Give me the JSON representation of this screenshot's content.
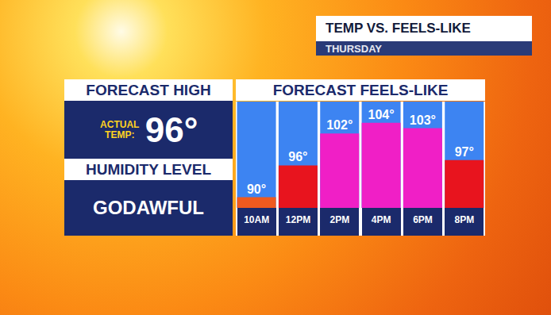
{
  "header": {
    "title": "TEMP VS. FEELS-LIKE",
    "subtitle": "THURSDAY"
  },
  "panel": {
    "forecast_title": "FORECAST HIGH",
    "actual_temp_label": "ACTUAL TEMP:",
    "actual_temp": "96°",
    "humidity_title": "HUMIDITY LEVEL",
    "humidity_level": "GODAWFUL"
  },
  "chart_data": {
    "type": "bar",
    "title": "FORECAST FEELS-LIKE",
    "categories": [
      "10AM",
      "12PM",
      "2PM",
      "4PM",
      "6PM",
      "8PM"
    ],
    "values": [
      90,
      96,
      102,
      104,
      103,
      97
    ],
    "value_labels": [
      "90°",
      "96°",
      "102°",
      "104°",
      "103°",
      "97°"
    ],
    "colors": [
      "#ef5a1f",
      "#e8141e",
      "#f01fc6",
      "#f01fc6",
      "#f01fc6",
      "#e8141e"
    ],
    "ylim": [
      88,
      108
    ],
    "data_labels": true,
    "tick_labels": "x"
  }
}
